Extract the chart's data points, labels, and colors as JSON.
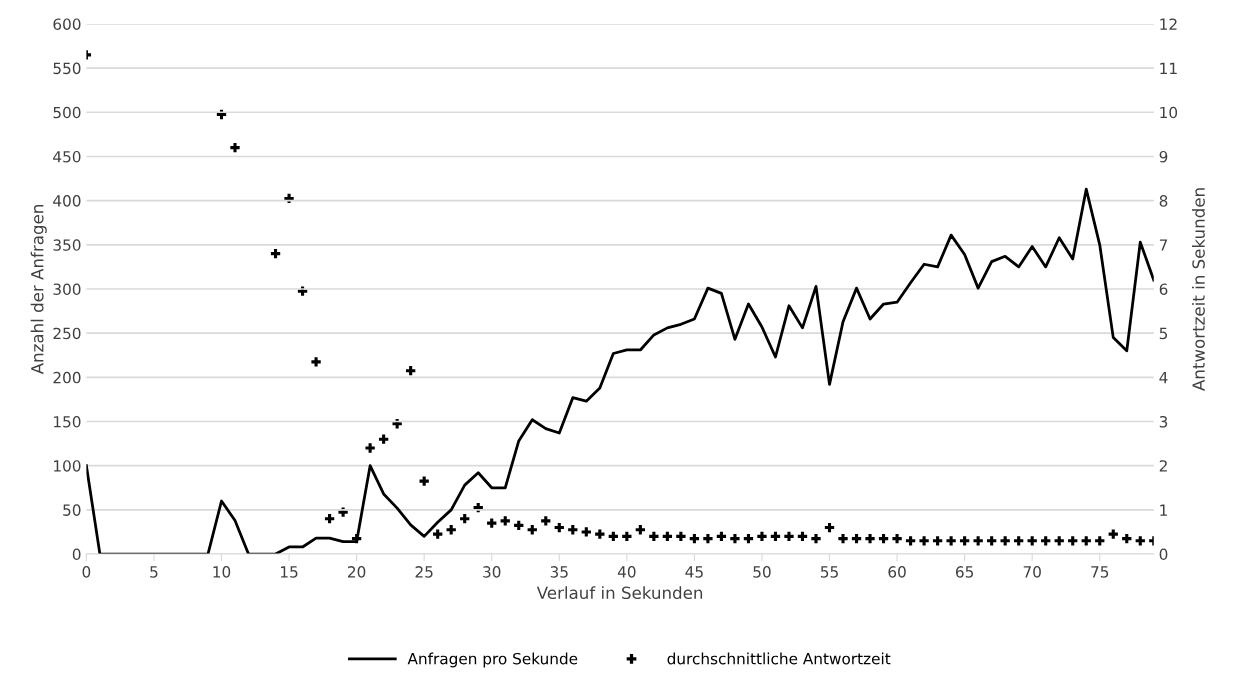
{
  "chart_data": {
    "type": "line",
    "xlabel": "Verlauf in Sekunden",
    "ylabel": "Anzahl der Anfragen",
    "y2label": "Antwortzeit in Sekunden",
    "x": [
      0,
      1,
      2,
      3,
      4,
      5,
      6,
      7,
      8,
      9,
      10,
      11,
      12,
      13,
      14,
      15,
      16,
      17,
      18,
      19,
      20,
      21,
      22,
      23,
      24,
      25,
      26,
      27,
      28,
      29,
      30,
      31,
      32,
      33,
      34,
      35,
      36,
      37,
      38,
      39,
      40,
      41,
      42,
      43,
      44,
      45,
      46,
      47,
      48,
      49,
      50,
      51,
      52,
      53,
      54,
      55,
      56,
      57,
      58,
      59,
      60,
      61,
      62,
      63,
      64,
      65,
      66,
      67,
      68,
      69,
      70,
      71,
      72,
      73,
      74,
      75,
      76,
      77,
      78,
      79
    ],
    "series": [
      {
        "name": "Anfragen pro Sekunde",
        "color": "#000000",
        "marker": "none",
        "values": [
          100,
          0,
          0,
          0,
          0,
          0,
          0,
          0,
          0,
          0,
          60,
          38,
          0,
          0,
          0,
          8,
          8,
          18,
          18,
          14,
          14,
          100,
          68,
          52,
          33,
          20,
          36,
          50,
          78,
          92,
          75,
          75,
          128,
          152,
          142,
          137,
          177,
          173,
          188,
          227,
          231,
          231,
          248,
          256,
          260,
          266,
          301,
          295,
          243,
          283,
          257,
          223,
          281,
          256,
          303,
          192,
          263,
          301,
          266,
          283,
          285,
          307,
          328,
          325,
          361,
          339,
          301,
          331,
          337,
          325,
          348,
          325,
          358,
          334,
          413,
          350,
          245,
          230,
          353,
          310
        ]
      },
      {
        "name": "durchschnittliche Antwortzeit",
        "type": "scatter",
        "axis": "y2",
        "color": "#000000",
        "marker": "cross",
        "values": [
          11.3,
          null,
          null,
          null,
          null,
          null,
          null,
          null,
          null,
          null,
          9.95,
          9.2,
          null,
          null,
          6.8,
          8.05,
          5.95,
          4.35,
          0.8,
          0.95,
          0.35,
          2.4,
          2.6,
          2.95,
          4.15,
          1.65,
          0.45,
          0.55,
          0.8,
          1.05,
          0.7,
          0.75,
          0.65,
          0.55,
          0.75,
          0.6,
          0.55,
          0.5,
          0.45,
          0.4,
          0.4,
          0.55,
          0.4,
          0.4,
          0.4,
          0.35,
          0.35,
          0.4,
          0.35,
          0.35,
          0.4,
          0.4,
          0.4,
          0.4,
          0.35,
          0.6,
          0.35,
          0.35,
          0.35,
          0.35,
          0.35,
          0.3,
          0.3,
          0.3,
          0.3,
          0.3,
          0.3,
          0.3,
          0.3,
          0.3,
          0.3,
          0.3,
          0.3,
          0.3,
          0.3,
          0.3,
          0.45,
          0.35,
          0.3,
          0.3
        ]
      }
    ],
    "xlim": [
      0,
      79
    ],
    "xticks": [
      0,
      5,
      10,
      15,
      20,
      25,
      30,
      35,
      40,
      45,
      50,
      55,
      60,
      65,
      70,
      75
    ],
    "ylim": [
      0,
      600
    ],
    "yticks": [
      0,
      50,
      100,
      150,
      200,
      250,
      300,
      350,
      400,
      450,
      500,
      550,
      600
    ],
    "y2lim": [
      0,
      12
    ],
    "y2ticks": [
      0,
      1,
      2,
      3,
      4,
      5,
      6,
      7,
      8,
      9,
      10,
      11,
      12
    ],
    "grid": "y",
    "legend": "bottom"
  }
}
